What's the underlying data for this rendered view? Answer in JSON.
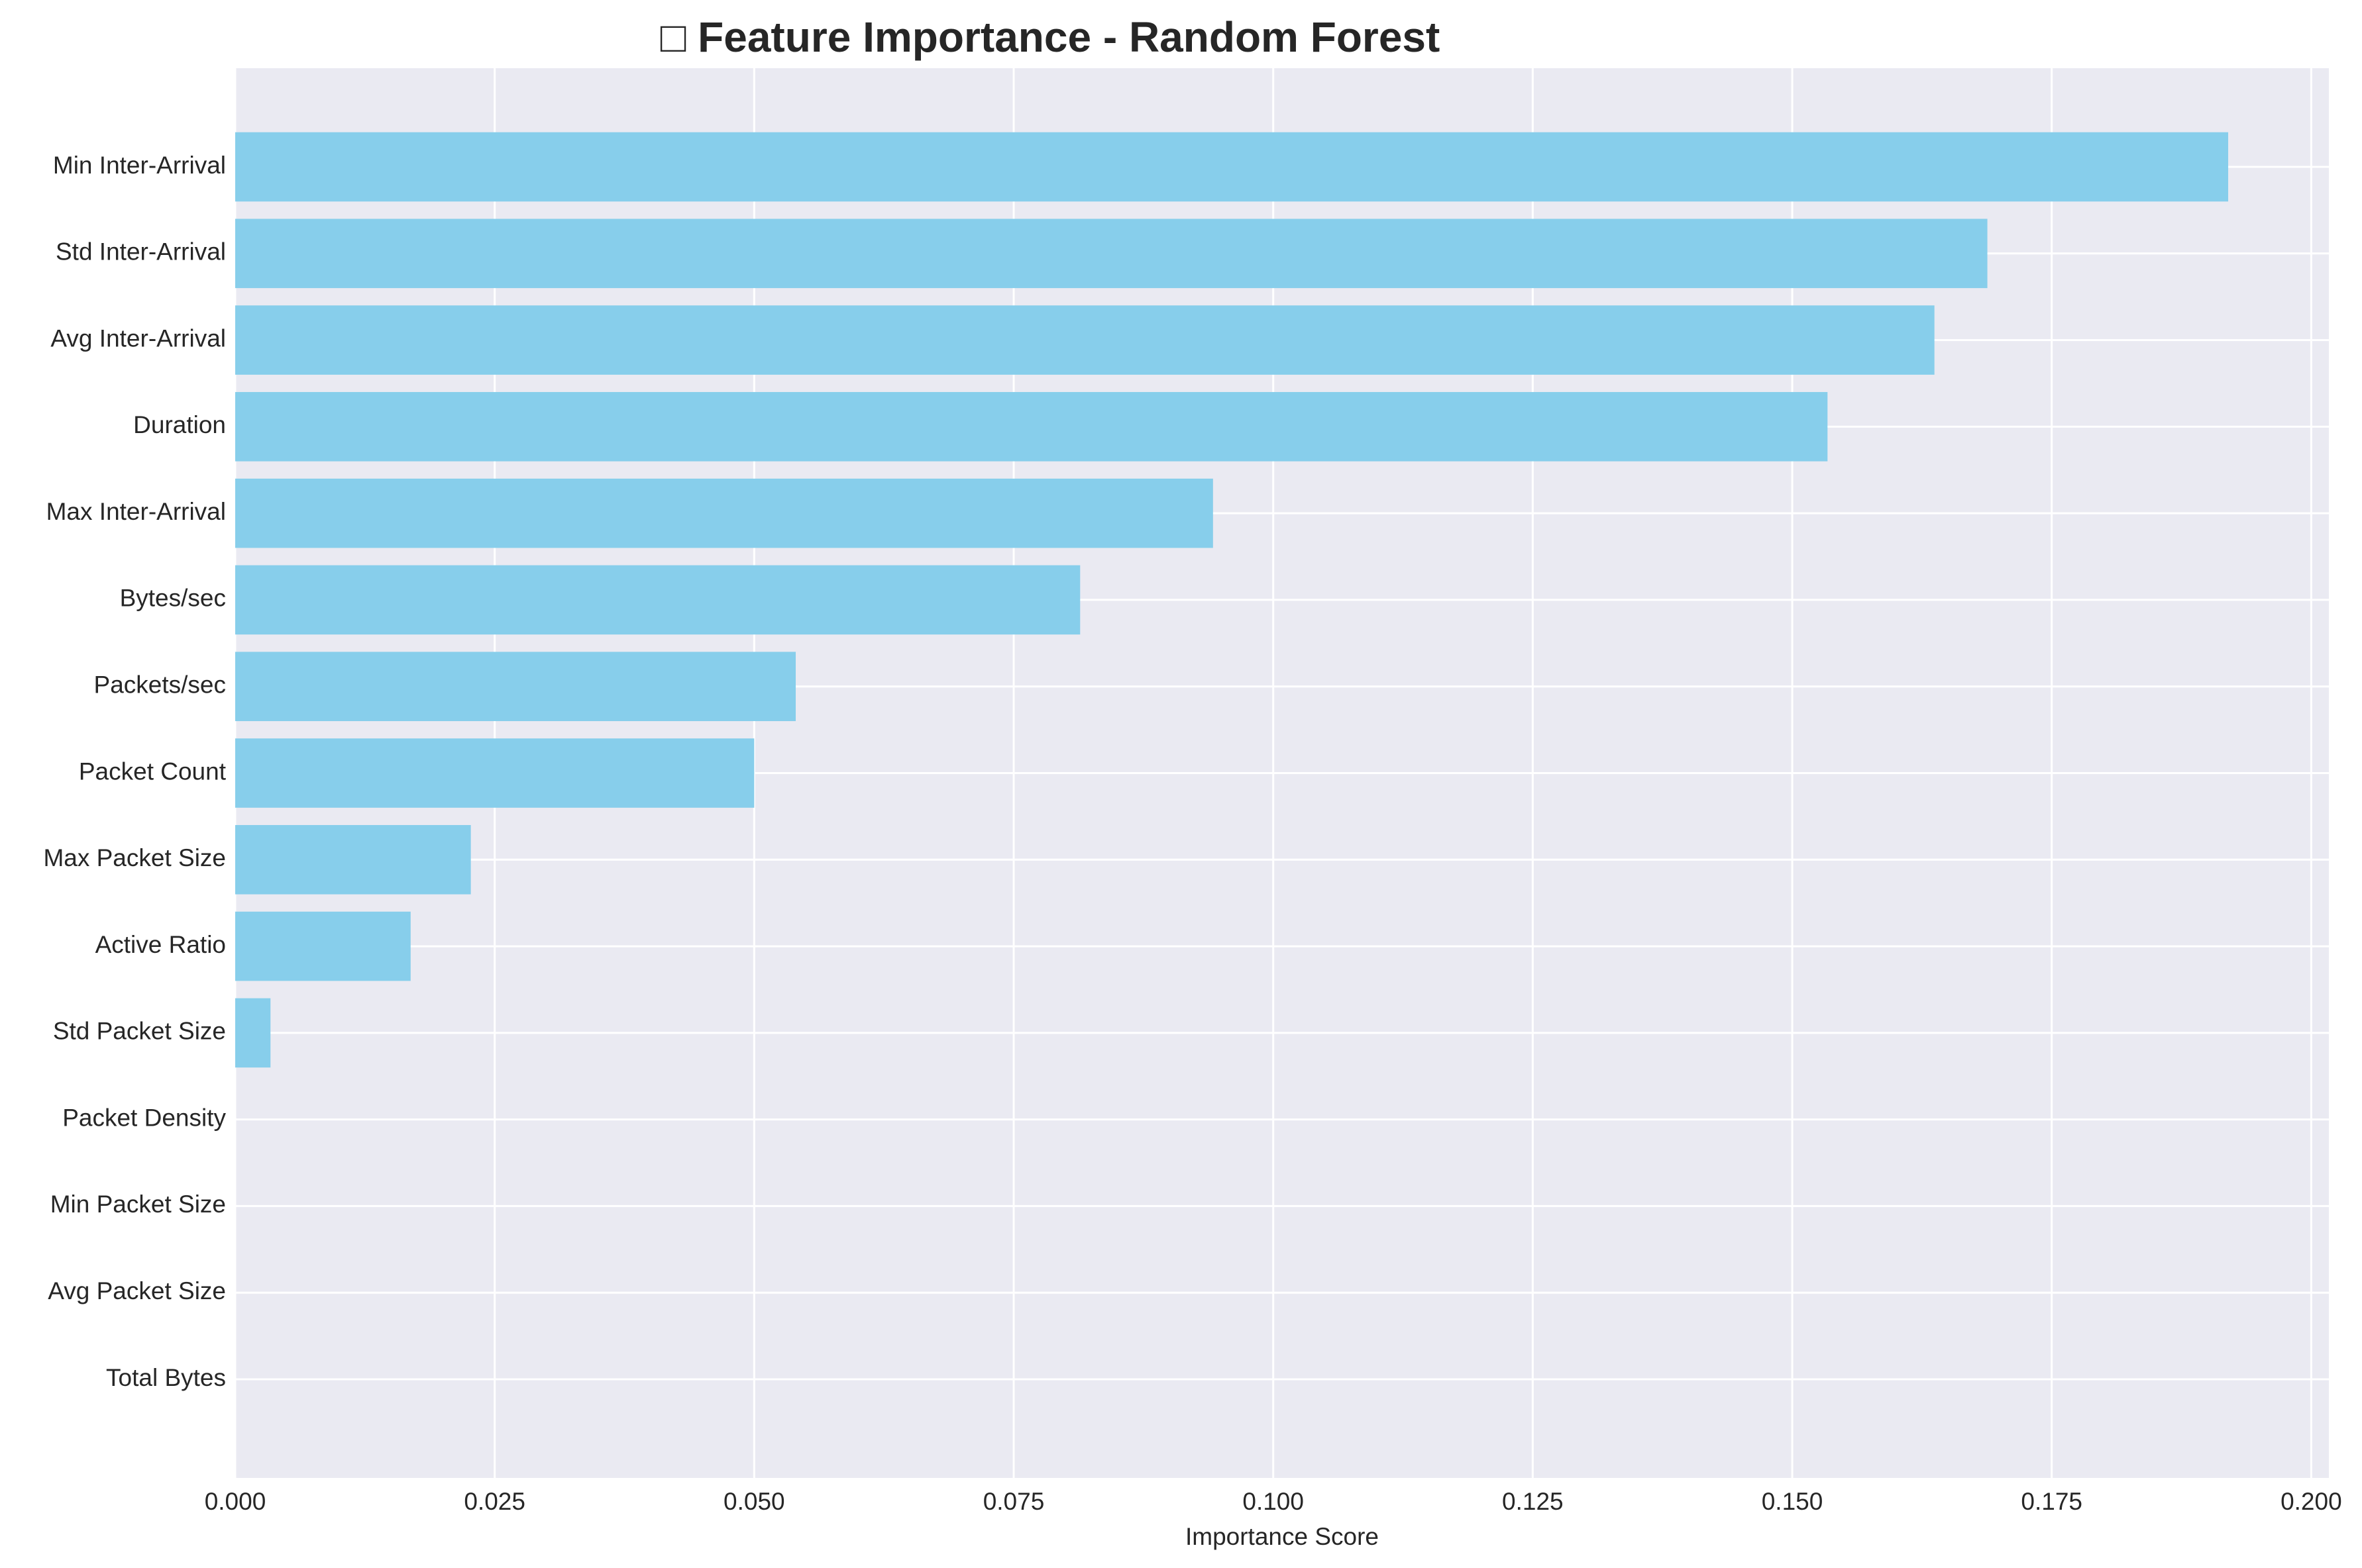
{
  "chart_data": {
    "type": "bar",
    "orientation": "horizontal",
    "title": "□ Feature Importance - Random Forest",
    "xlabel": "Importance Score",
    "ylabel": "",
    "xlim": [
      0,
      0.2017
    ],
    "xticks": [
      "0.000",
      "0.025",
      "0.050",
      "0.075",
      "0.100",
      "0.125",
      "0.150",
      "0.175",
      "0.200"
    ],
    "xtick_values": [
      0,
      0.025,
      0.05,
      0.075,
      0.1,
      0.125,
      0.15,
      0.175,
      0.2
    ],
    "grid": true,
    "bar_color": "#87CEEB",
    "background_color": "#EAEAF2",
    "grid_color": "#FFFFFF",
    "categories": [
      "Min Inter-Arrival",
      "Std Inter-Arrival",
      "Avg Inter-Arrival",
      "Duration",
      "Max Inter-Arrival",
      "Bytes/sec",
      "Packets/sec",
      "Packet Count",
      "Max Packet Size",
      "Active Ratio",
      "Std Packet Size",
      "Packet Density",
      "Min Packet Size",
      "Avg Packet Size",
      "Total Bytes"
    ],
    "values": [
      0.192,
      0.1688,
      0.1637,
      0.1534,
      0.0942,
      0.0814,
      0.054,
      0.05,
      0.0227,
      0.0169,
      0.0034,
      0.0,
      0.0,
      0.0,
      0.0
    ]
  }
}
